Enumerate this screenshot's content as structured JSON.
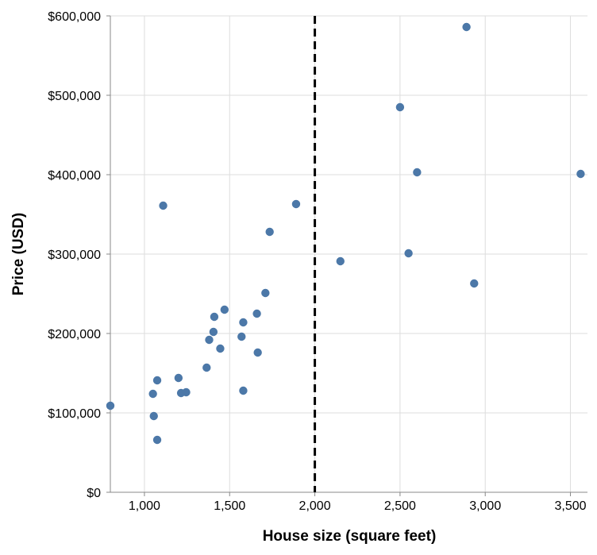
{
  "chart_data": {
    "type": "scatter",
    "xlabel": "House size (square feet)",
    "ylabel": "Price (USD)",
    "xlim": [
      800,
      3600
    ],
    "ylim": [
      0,
      600000
    ],
    "x_ticks": [
      1000,
      1500,
      2000,
      2500,
      3000,
      3500
    ],
    "x_tick_labels": [
      "1,000",
      "1,500",
      "2,000",
      "2,500",
      "3,000",
      "3,500"
    ],
    "y_ticks": [
      0,
      100000,
      200000,
      300000,
      400000,
      500000,
      600000
    ],
    "y_tick_labels": [
      "$0",
      "$100,000",
      "$200,000",
      "$300,000",
      "$400,000",
      "$500,000",
      "$600,000"
    ],
    "grid": true,
    "reference_line": {
      "x": 2000,
      "style": "dashed",
      "color": "#000000"
    },
    "point_color": "#4c78a8",
    "points": [
      {
        "x": 800,
        "y": 109000
      },
      {
        "x": 1050,
        "y": 124000
      },
      {
        "x": 1055,
        "y": 96000
      },
      {
        "x": 1075,
        "y": 66000
      },
      {
        "x": 1075,
        "y": 141000
      },
      {
        "x": 1110,
        "y": 361000
      },
      {
        "x": 1200,
        "y": 144000
      },
      {
        "x": 1215,
        "y": 125000
      },
      {
        "x": 1245,
        "y": 126000
      },
      {
        "x": 1365,
        "y": 157000
      },
      {
        "x": 1380,
        "y": 192000
      },
      {
        "x": 1405,
        "y": 202000
      },
      {
        "x": 1410,
        "y": 221000
      },
      {
        "x": 1445,
        "y": 181000
      },
      {
        "x": 1470,
        "y": 230000
      },
      {
        "x": 1570,
        "y": 196000
      },
      {
        "x": 1580,
        "y": 128000
      },
      {
        "x": 1580,
        "y": 214000
      },
      {
        "x": 1660,
        "y": 225000
      },
      {
        "x": 1665,
        "y": 176000
      },
      {
        "x": 1710,
        "y": 251000
      },
      {
        "x": 1735,
        "y": 328000
      },
      {
        "x": 1890,
        "y": 363000
      },
      {
        "x": 2150,
        "y": 291000
      },
      {
        "x": 2500,
        "y": 485000
      },
      {
        "x": 2550,
        "y": 301000
      },
      {
        "x": 2600,
        "y": 403000
      },
      {
        "x": 2890,
        "y": 586000
      },
      {
        "x": 2935,
        "y": 263000
      },
      {
        "x": 3560,
        "y": 401000
      }
    ]
  }
}
